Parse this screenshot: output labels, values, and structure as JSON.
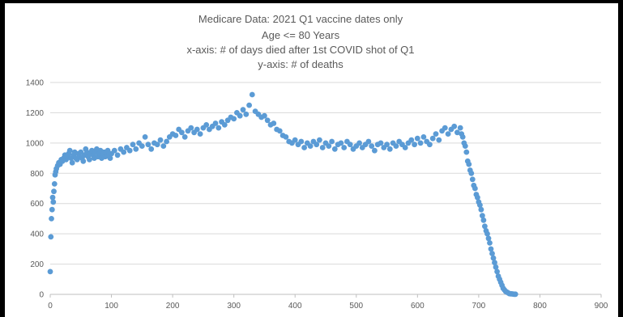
{
  "chart_data": {
    "type": "scatter",
    "title_lines": [
      "Medicare Data: 2021 Q1 vaccine dates only",
      "Age <= 80 Years",
      "x-axis: # of days died after 1st COVID shot of Q1",
      "y-axis: # of deaths"
    ],
    "xlim": [
      0,
      900
    ],
    "ylim": [
      0,
      1400
    ],
    "x_ticks": [
      "0",
      "100",
      "200",
      "300",
      "400",
      "500",
      "600",
      "700",
      "800",
      "900"
    ],
    "y_ticks": [
      "0",
      "200",
      "400",
      "600",
      "800",
      "1000",
      "1200",
      "1400"
    ],
    "grid": "horizontal",
    "legend": "none",
    "marker_color": "#5b9bd5",
    "series": [
      {
        "points": [
          [
            0,
            150
          ],
          [
            1,
            380
          ],
          [
            2,
            500
          ],
          [
            3,
            560
          ],
          [
            4,
            640
          ],
          [
            5,
            610
          ],
          [
            6,
            680
          ],
          [
            7,
            730
          ],
          [
            8,
            790
          ],
          [
            9,
            810
          ],
          [
            10,
            830
          ],
          [
            12,
            850
          ],
          [
            14,
            870
          ],
          [
            16,
            860
          ],
          [
            18,
            890
          ],
          [
            20,
            880
          ],
          [
            22,
            900
          ],
          [
            24,
            920
          ],
          [
            26,
            890
          ],
          [
            28,
            910
          ],
          [
            30,
            930
          ],
          [
            32,
            950
          ],
          [
            34,
            900
          ],
          [
            36,
            870
          ],
          [
            38,
            920
          ],
          [
            40,
            940
          ],
          [
            42,
            900
          ],
          [
            44,
            890
          ],
          [
            46,
            930
          ],
          [
            48,
            910
          ],
          [
            50,
            940
          ],
          [
            52,
            900
          ],
          [
            54,
            880
          ],
          [
            56,
            920
          ],
          [
            58,
            960
          ],
          [
            60,
            940
          ],
          [
            62,
            910
          ],
          [
            64,
            890
          ],
          [
            66,
            930
          ],
          [
            68,
            950
          ],
          [
            70,
            920
          ],
          [
            72,
            900
          ],
          [
            74,
            940
          ],
          [
            76,
            960
          ],
          [
            78,
            910
          ],
          [
            80,
            930
          ],
          [
            82,
            950
          ],
          [
            84,
            900
          ],
          [
            86,
            920
          ],
          [
            88,
            940
          ],
          [
            90,
            910
          ],
          [
            92,
            930
          ],
          [
            94,
            950
          ],
          [
            96,
            920
          ],
          [
            98,
            900
          ],
          [
            100,
            930
          ],
          [
            105,
            950
          ],
          [
            110,
            920
          ],
          [
            115,
            960
          ],
          [
            120,
            940
          ],
          [
            125,
            970
          ],
          [
            130,
            950
          ],
          [
            135,
            990
          ],
          [
            140,
            960
          ],
          [
            145,
            1000
          ],
          [
            150,
            980
          ],
          [
            155,
            1040
          ],
          [
            160,
            990
          ],
          [
            165,
            960
          ],
          [
            170,
            1000
          ],
          [
            175,
            990
          ],
          [
            180,
            1020
          ],
          [
            185,
            980
          ],
          [
            190,
            1010
          ],
          [
            195,
            1040
          ],
          [
            200,
            1060
          ],
          [
            205,
            1050
          ],
          [
            210,
            1090
          ],
          [
            215,
            1070
          ],
          [
            220,
            1040
          ],
          [
            225,
            1080
          ],
          [
            230,
            1100
          ],
          [
            235,
            1070
          ],
          [
            240,
            1090
          ],
          [
            245,
            1060
          ],
          [
            250,
            1100
          ],
          [
            255,
            1120
          ],
          [
            260,
            1090
          ],
          [
            265,
            1110
          ],
          [
            270,
            1130
          ],
          [
            275,
            1100
          ],
          [
            280,
            1140
          ],
          [
            285,
            1120
          ],
          [
            290,
            1150
          ],
          [
            295,
            1170
          ],
          [
            300,
            1160
          ],
          [
            305,
            1200
          ],
          [
            310,
            1180
          ],
          [
            315,
            1220
          ],
          [
            320,
            1190
          ],
          [
            325,
            1250
          ],
          [
            330,
            1320
          ],
          [
            335,
            1210
          ],
          [
            340,
            1190
          ],
          [
            345,
            1170
          ],
          [
            350,
            1180
          ],
          [
            355,
            1150
          ],
          [
            360,
            1120
          ],
          [
            365,
            1130
          ],
          [
            370,
            1090
          ],
          [
            375,
            1080
          ],
          [
            380,
            1050
          ],
          [
            385,
            1040
          ],
          [
            390,
            1010
          ],
          [
            395,
            1000
          ],
          [
            400,
            1020
          ],
          [
            405,
            990
          ],
          [
            410,
            1010
          ],
          [
            415,
            970
          ],
          [
            420,
            1000
          ],
          [
            425,
            980
          ],
          [
            430,
            1010
          ],
          [
            435,
            990
          ],
          [
            440,
            1020
          ],
          [
            445,
            970
          ],
          [
            450,
            1000
          ],
          [
            455,
            980
          ],
          [
            460,
            1010
          ],
          [
            465,
            960
          ],
          [
            470,
            990
          ],
          [
            475,
            1000
          ],
          [
            480,
            970
          ],
          [
            485,
            1010
          ],
          [
            490,
            990
          ],
          [
            495,
            960
          ],
          [
            500,
            980
          ],
          [
            505,
            1000
          ],
          [
            510,
            970
          ],
          [
            515,
            990
          ],
          [
            520,
            1010
          ],
          [
            525,
            980
          ],
          [
            530,
            950
          ],
          [
            535,
            990
          ],
          [
            540,
            1000
          ],
          [
            545,
            970
          ],
          [
            550,
            990
          ],
          [
            555,
            960
          ],
          [
            560,
            1000
          ],
          [
            565,
            980
          ],
          [
            570,
            1010
          ],
          [
            575,
            990
          ],
          [
            580,
            970
          ],
          [
            585,
            1000
          ],
          [
            590,
            1020
          ],
          [
            595,
            990
          ],
          [
            600,
            1030
          ],
          [
            605,
            1000
          ],
          [
            610,
            1040
          ],
          [
            615,
            1010
          ],
          [
            620,
            990
          ],
          [
            625,
            1030
          ],
          [
            630,
            1060
          ],
          [
            635,
            1020
          ],
          [
            640,
            1080
          ],
          [
            645,
            1100
          ],
          [
            650,
            1060
          ],
          [
            655,
            1090
          ],
          [
            660,
            1110
          ],
          [
            665,
            1070
          ],
          [
            670,
            1100
          ],
          [
            672,
            1060
          ],
          [
            674,
            1040
          ],
          [
            676,
            1000
          ],
          [
            678,
            980
          ],
          [
            680,
            940
          ],
          [
            682,
            880
          ],
          [
            684,
            860
          ],
          [
            686,
            820
          ],
          [
            688,
            800
          ],
          [
            690,
            760
          ],
          [
            692,
            720
          ],
          [
            694,
            700
          ],
          [
            696,
            660
          ],
          [
            698,
            640
          ],
          [
            700,
            610
          ],
          [
            702,
            590
          ],
          [
            704,
            560
          ],
          [
            706,
            520
          ],
          [
            708,
            490
          ],
          [
            710,
            450
          ],
          [
            712,
            420
          ],
          [
            714,
            400
          ],
          [
            716,
            370
          ],
          [
            718,
            340
          ],
          [
            720,
            300
          ],
          [
            722,
            270
          ],
          [
            724,
            240
          ],
          [
            726,
            210
          ],
          [
            728,
            180
          ],
          [
            730,
            150
          ],
          [
            732,
            120
          ],
          [
            734,
            100
          ],
          [
            736,
            80
          ],
          [
            738,
            60
          ],
          [
            740,
            40
          ],
          [
            742,
            30
          ],
          [
            744,
            20
          ],
          [
            746,
            15
          ],
          [
            748,
            10
          ],
          [
            750,
            5
          ],
          [
            752,
            4
          ],
          [
            754,
            3
          ],
          [
            756,
            2
          ],
          [
            758,
            1
          ],
          [
            760,
            1
          ]
        ]
      }
    ]
  }
}
